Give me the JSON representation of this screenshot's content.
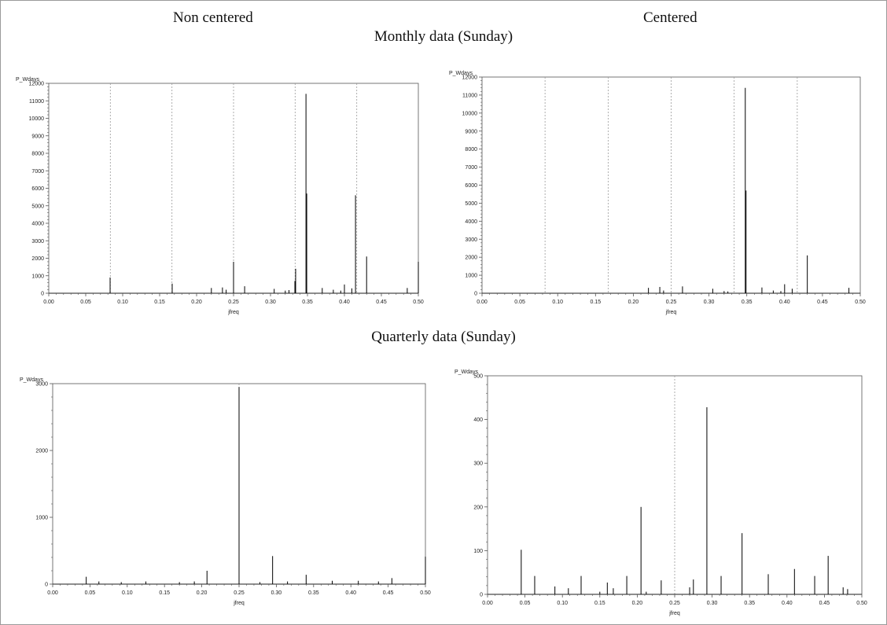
{
  "headers": {
    "non_centered": "Non centered",
    "centered": "Centered",
    "monthly": "Monthly data (Sunday)",
    "quarterly": "Quarterly data (Sunday)"
  },
  "colors": {
    "spike": "#000000",
    "axis": "#555555",
    "refline": "#9a9a9a",
    "frame": "#9a9a9a"
  },
  "chart_data": [
    {
      "id": "monthly-noncentered",
      "type": "bar",
      "ylabel": "P_Wdays",
      "xlabel": "jfreq",
      "xlim": [
        0,
        0.5
      ],
      "ylim": [
        0,
        12000
      ],
      "xticks": [
        "0.00",
        "0.05",
        "0.10",
        "0.15",
        "0.20",
        "0.25",
        "0.30",
        "0.35",
        "0.40",
        "0.45",
        "0.50"
      ],
      "yticks": [
        "0",
        "1000",
        "2000",
        "3000",
        "4000",
        "5000",
        "6000",
        "7000",
        "8000",
        "9000",
        "10000",
        "11000",
        "12000"
      ],
      "reference_lines_x": [
        0.0833,
        0.1667,
        0.25,
        0.3333,
        0.4167
      ],
      "x": [
        0.083,
        0.167,
        0.22,
        0.235,
        0.24,
        0.25,
        0.265,
        0.305,
        0.32,
        0.325,
        0.333,
        0.334,
        0.348,
        0.349,
        0.37,
        0.385,
        0.395,
        0.4,
        0.41,
        0.415,
        0.43,
        0.485,
        0.5
      ],
      "values": [
        900,
        550,
        300,
        330,
        200,
        1800,
        400,
        250,
        150,
        180,
        700,
        1400,
        11400,
        5700,
        300,
        200,
        150,
        500,
        280,
        5600,
        2100,
        300,
        1800
      ]
    },
    {
      "id": "monthly-centered",
      "type": "bar",
      "ylabel": "P_Wdays",
      "xlabel": "jfreq",
      "xlim": [
        0,
        0.5
      ],
      "ylim": [
        0,
        12000
      ],
      "xticks": [
        "0.00",
        "0.05",
        "0.10",
        "0.15",
        "0.20",
        "0.25",
        "0.30",
        "0.35",
        "0.40",
        "0.45",
        "0.50"
      ],
      "yticks": [
        "0",
        "1000",
        "2000",
        "3000",
        "4000",
        "5000",
        "6000",
        "7000",
        "8000",
        "9000",
        "10000",
        "11000",
        "12000"
      ],
      "reference_lines_x": [
        0.0833,
        0.1667,
        0.25,
        0.3333,
        0.4167
      ],
      "x": [
        0.22,
        0.235,
        0.24,
        0.265,
        0.305,
        0.32,
        0.325,
        0.348,
        0.349,
        0.37,
        0.385,
        0.395,
        0.4,
        0.41,
        0.43,
        0.485
      ],
      "values": [
        300,
        350,
        150,
        380,
        250,
        120,
        100,
        11400,
        5700,
        320,
        150,
        120,
        500,
        250,
        2100,
        300
      ]
    },
    {
      "id": "quarterly-noncentered",
      "type": "bar",
      "ylabel": "P_Wdays",
      "xlabel": "jfreq",
      "xlim": [
        0,
        0.5
      ],
      "ylim": [
        0,
        3000
      ],
      "xticks": [
        "0.00",
        "0.05",
        "0.10",
        "0.15",
        "0.20",
        "0.25",
        "0.30",
        "0.35",
        "0.40",
        "0.45",
        "0.50"
      ],
      "yticks": [
        "0",
        "1000",
        "2000",
        "3000"
      ],
      "reference_lines_x": [
        0.25
      ],
      "x": [
        0.045,
        0.062,
        0.092,
        0.125,
        0.17,
        0.19,
        0.207,
        0.25,
        0.278,
        0.295,
        0.315,
        0.34,
        0.375,
        0.41,
        0.437,
        0.455,
        0.5
      ],
      "values": [
        110,
        40,
        30,
        40,
        30,
        40,
        200,
        2950,
        30,
        420,
        40,
        140,
        50,
        50,
        40,
        90,
        410
      ]
    },
    {
      "id": "quarterly-centered",
      "type": "bar",
      "ylabel": "P_Wdays",
      "xlabel": "jfreq",
      "xlim": [
        0,
        0.5
      ],
      "ylim": [
        0,
        500
      ],
      "xticks": [
        "0.00",
        "0.05",
        "0.10",
        "0.15",
        "0.20",
        "0.25",
        "0.30",
        "0.35",
        "0.40",
        "0.45",
        "0.50"
      ],
      "yticks": [
        "0",
        "100",
        "200",
        "300",
        "400",
        "500"
      ],
      "reference_lines_x": [
        0.25
      ],
      "x": [
        0.045,
        0.063,
        0.09,
        0.108,
        0.125,
        0.15,
        0.16,
        0.168,
        0.186,
        0.205,
        0.212,
        0.232,
        0.27,
        0.275,
        0.293,
        0.312,
        0.34,
        0.375,
        0.41,
        0.437,
        0.455,
        0.475,
        0.481
      ],
      "values": [
        102,
        42,
        18,
        14,
        42,
        6,
        27,
        14,
        42,
        200,
        6,
        32,
        16,
        34,
        428,
        42,
        140,
        46,
        58,
        42,
        88,
        16,
        12
      ]
    }
  ]
}
